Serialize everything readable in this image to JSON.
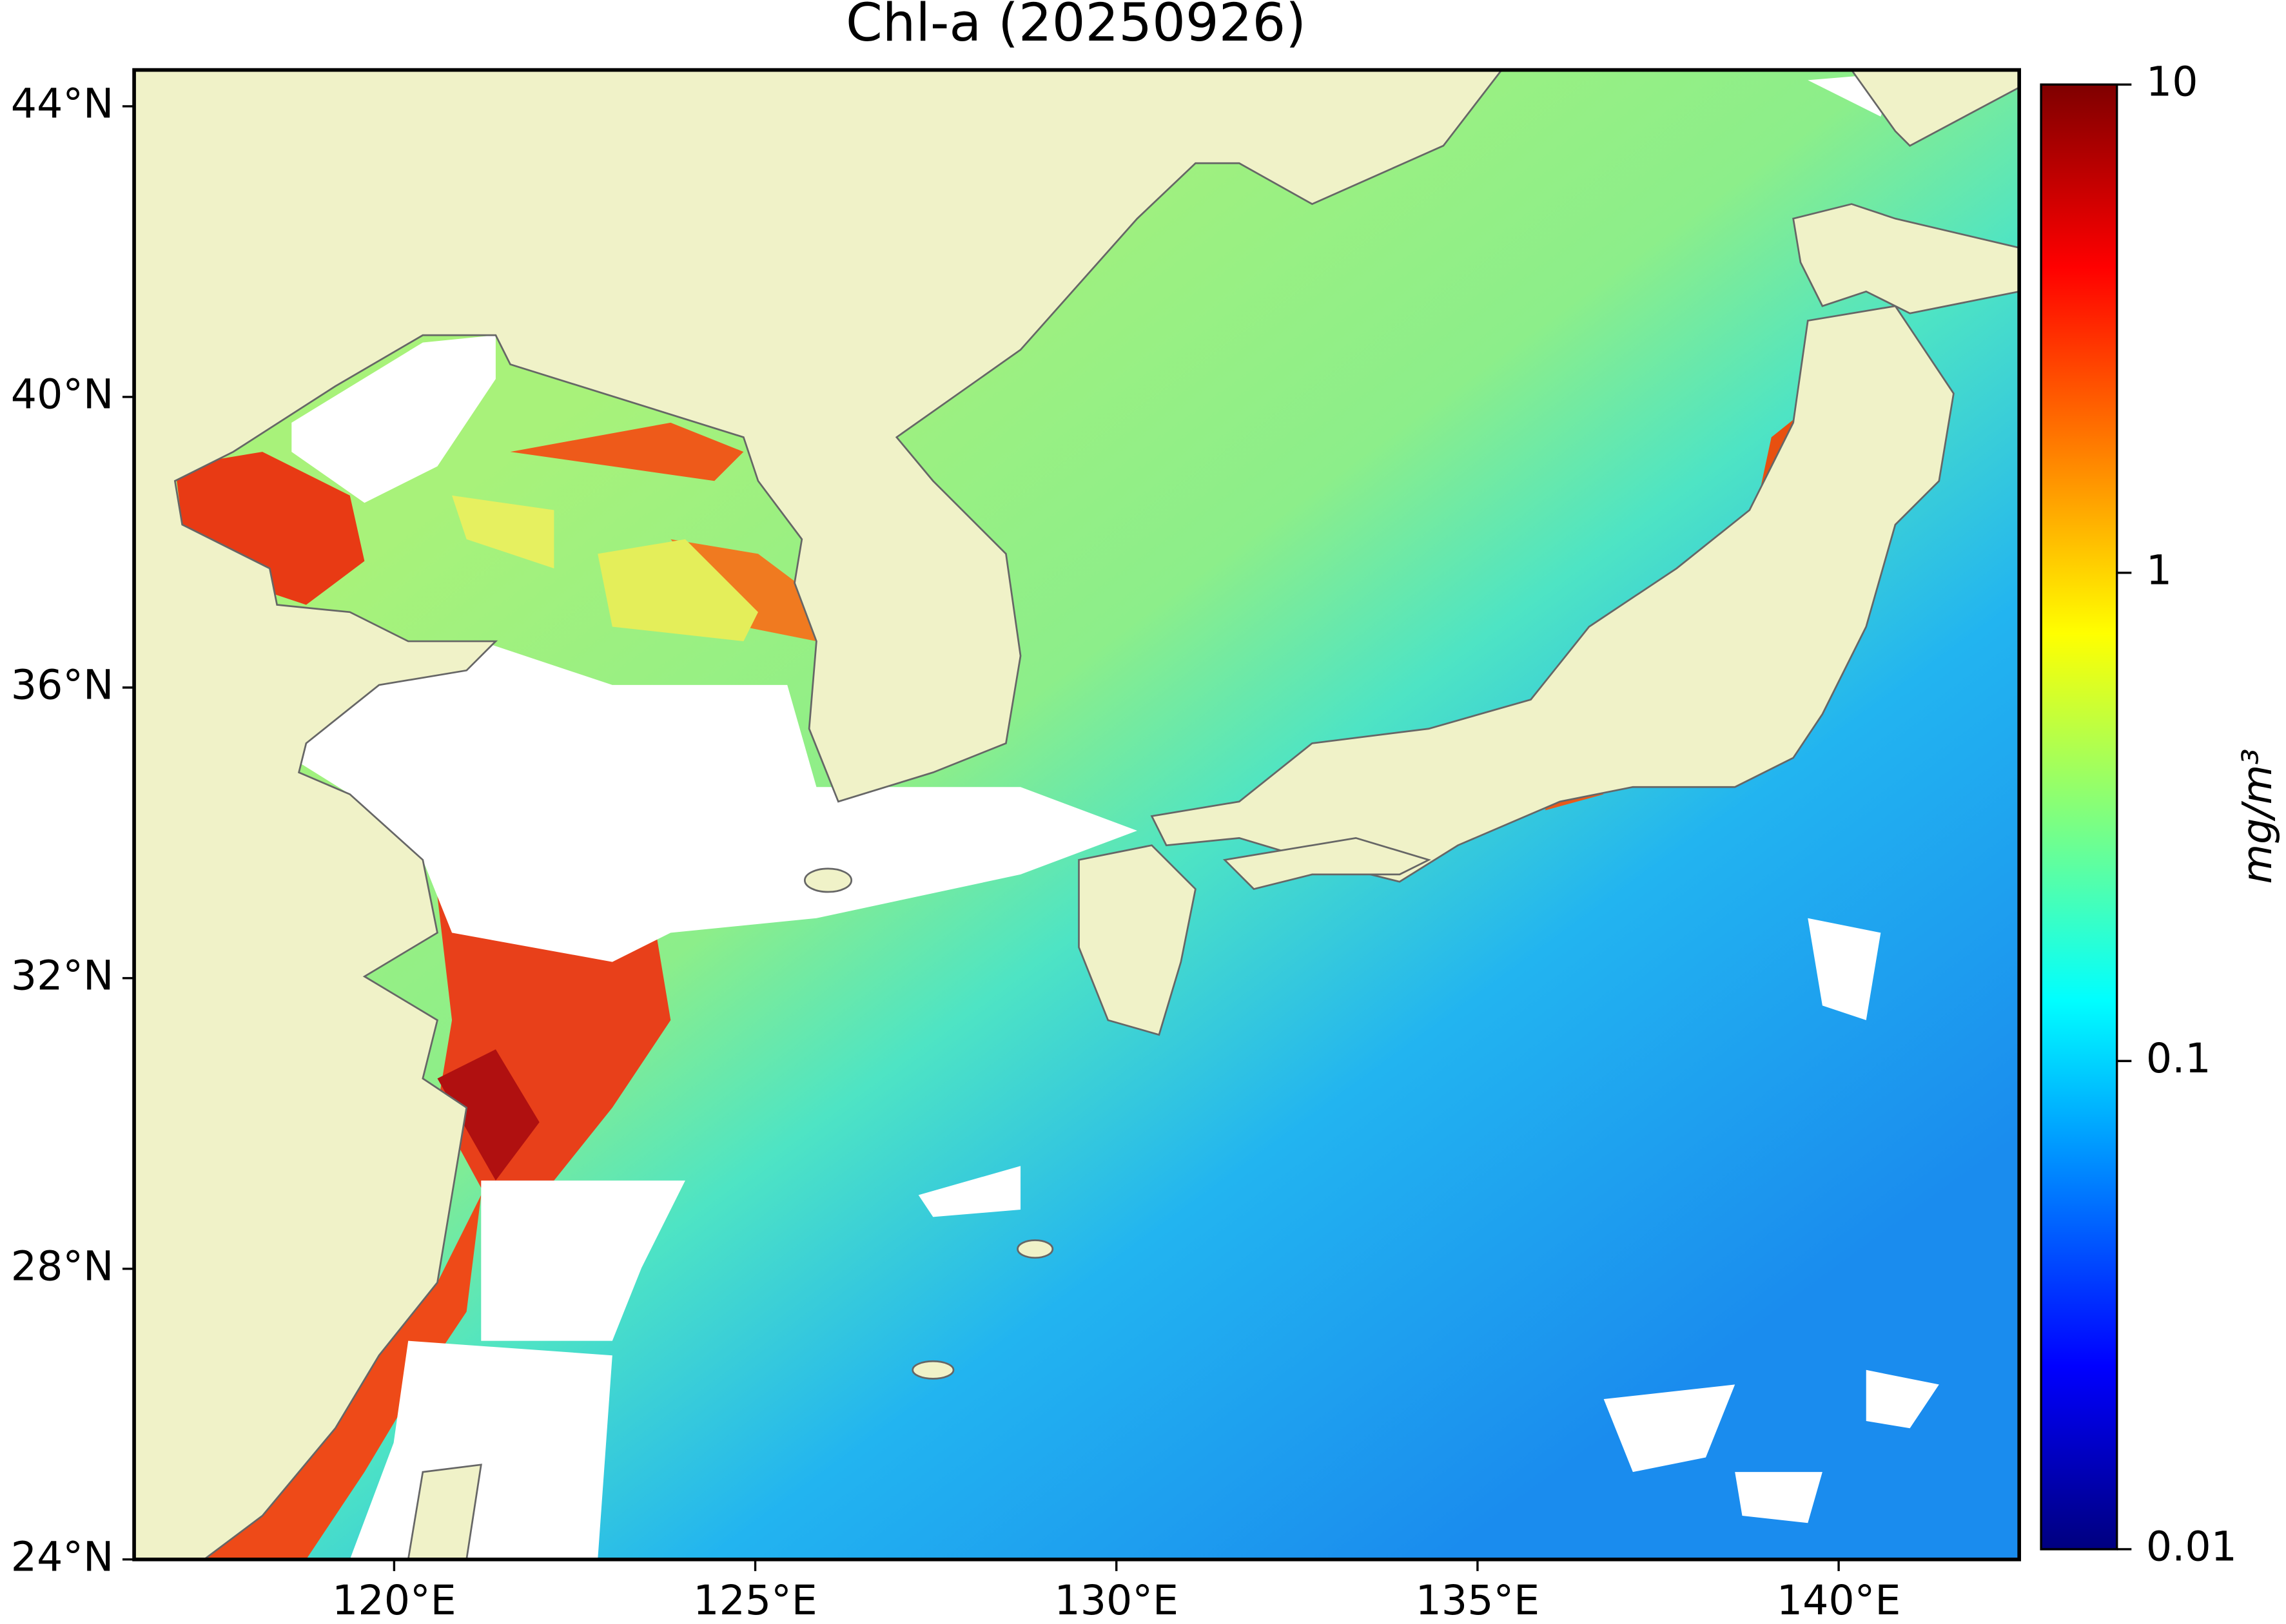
{
  "chart_data": {
    "type": "map",
    "title": "Chl-a (20250926)",
    "xlim": [
      116.4,
      142.5
    ],
    "ylim": [
      24,
      44.5
    ],
    "xticks": [
      {
        "value": 120,
        "label": "120°E"
      },
      {
        "value": 125,
        "label": "125°E"
      },
      {
        "value": 130,
        "label": "130°E"
      },
      {
        "value": 135,
        "label": "135°E"
      },
      {
        "value": 140,
        "label": "140°E"
      }
    ],
    "yticks": [
      {
        "value": 24,
        "label": "24°N"
      },
      {
        "value": 28,
        "label": "28°N"
      },
      {
        "value": 32,
        "label": "32°N"
      },
      {
        "value": 36,
        "label": "36°N"
      },
      {
        "value": 40,
        "label": "40°N"
      },
      {
        "value": 44,
        "label": "44°N"
      }
    ],
    "colorbar": {
      "label": "mg/m³",
      "lim": [
        0.01,
        10
      ],
      "log": true,
      "ticks": [
        0.01,
        0.1,
        1,
        10
      ],
      "colormap": [
        "#00007f",
        "#0000ff",
        "#007fff",
        "#00ffff",
        "#7fff7f",
        "#ffff00",
        "#ff7f00",
        "#ff0000",
        "#7f0000"
      ]
    }
  }
}
